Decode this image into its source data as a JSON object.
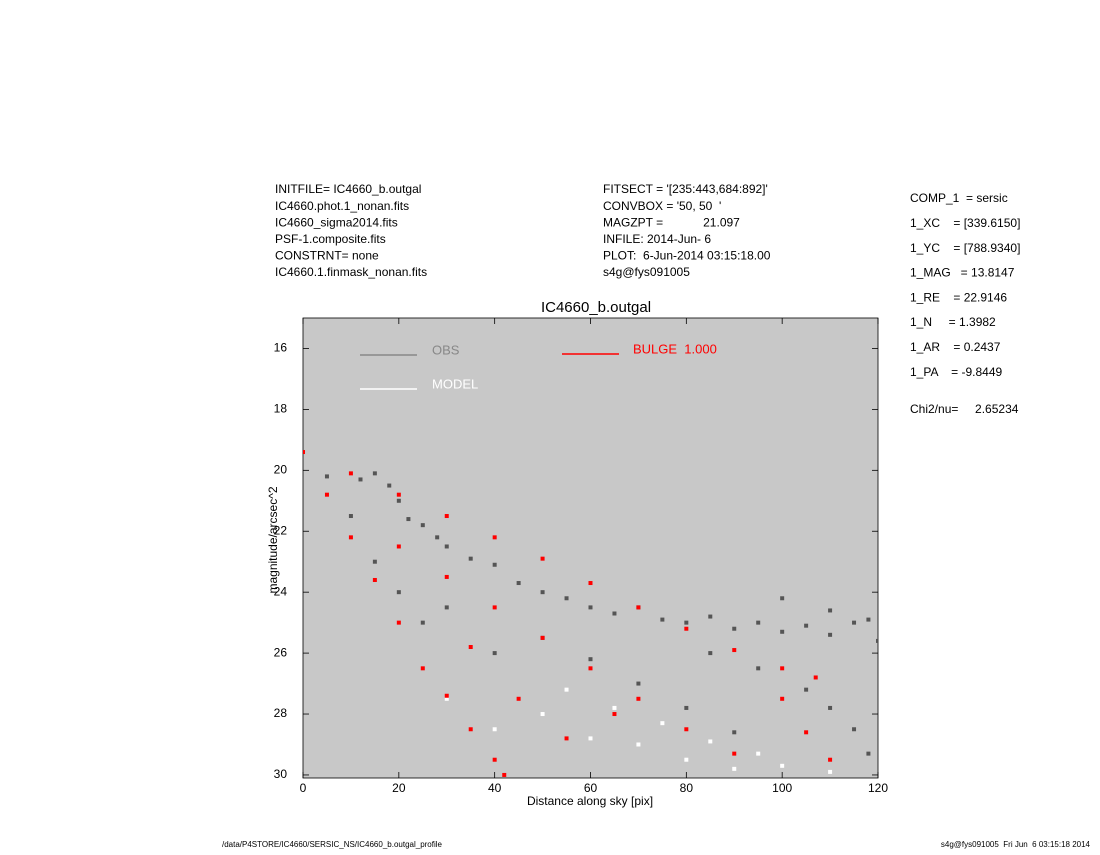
{
  "chart_data": {
    "type": "scatter",
    "title": "IC4660_b.outgal",
    "x_label": "Distance along sky [pix]",
    "y_label": "magnitude/arcsec^2",
    "xlim": [
      0,
      120
    ],
    "ylim": [
      15,
      30.1
    ],
    "y_inverted": true,
    "xticks": [
      0,
      20,
      40,
      60,
      80,
      100,
      120
    ],
    "yticks": [
      16,
      18,
      20,
      22,
      24,
      26,
      28,
      30
    ],
    "plot_background": "#c8c8c8",
    "header_left": [
      "INITFILE= IC4660_b.outgal",
      "IC4660.phot.1_nonan.fits",
      "IC4660_sigma2014.fits",
      "PSF-1.composite.fits",
      "CONSTRNT= none",
      "IC4660.1.finmask_nonan.fits"
    ],
    "header_center": [
      "FITSECT = '[235:443,684:892]'",
      "CONVBOX = '50, 50  '",
      "MAGZPT =            21.097",
      "INFILE: 2014-Jun- 6",
      "PLOT:  6-Jun-2014 03:15:18.00",
      "s4g@fys091005"
    ],
    "parameters": [
      "COMP_1  = sersic",
      "1_XC    = [339.6150]",
      "1_YC    = [788.9340]",
      "1_MAG   = 13.8147",
      "1_RE    = 22.9146",
      "1_N     = 1.3982",
      "1_AR    = 0.2437",
      "1_PA    = -9.8449"
    ],
    "fit_statistic": "Chi2/nu=     2.65234",
    "footer_left": "/data/P4STORE/IC4660/SERSIC_NS/IC4660_b.outgal_profile",
    "footer_right": "s4g@fys091005  Fri Jun  6 03:15:18 2014",
    "series": [
      {
        "name": "OBS",
        "color": "#555555",
        "legend_color": "#888888",
        "x": [
          5,
          10,
          12,
          15,
          18,
          20,
          22,
          25,
          28,
          30,
          35,
          40,
          45,
          50,
          55,
          60,
          65,
          70,
          75,
          80,
          85,
          90,
          95,
          100,
          105,
          110,
          115,
          120,
          85,
          95,
          105,
          110,
          115,
          118,
          30,
          40,
          50,
          60,
          70,
          80,
          90,
          25,
          20,
          15,
          100,
          110,
          118
        ],
        "values": [
          20.2,
          21.5,
          20.3,
          20.1,
          20.5,
          21.0,
          21.6,
          21.8,
          22.2,
          22.5,
          22.9,
          23.1,
          23.7,
          24.0,
          24.2,
          24.5,
          24.7,
          24.5,
          24.9,
          25.0,
          24.8,
          25.2,
          25.0,
          25.3,
          25.1,
          25.4,
          25.0,
          25.6,
          26.0,
          26.5,
          27.2,
          27.8,
          28.5,
          29.3,
          24.5,
          26.0,
          25.5,
          26.2,
          27.0,
          27.8,
          28.6,
          25.0,
          24.0,
          23.0,
          24.2,
          24.6,
          24.9
        ]
      },
      {
        "name": "MODEL",
        "color": "#ffffff",
        "legend_color": "#ffffff",
        "x": [
          30,
          40,
          50,
          60,
          70,
          80,
          90,
          100,
          110,
          55,
          65,
          75,
          85,
          95
        ],
        "values": [
          27.5,
          28.5,
          28.0,
          28.8,
          29.0,
          29.5,
          29.8,
          29.7,
          29.9,
          27.2,
          27.8,
          28.3,
          28.9,
          29.3
        ]
      },
      {
        "name": "BULGE  1.000",
        "color": "#ff0000",
        "legend_color": "#ff0000",
        "x": [
          0,
          10,
          20,
          30,
          40,
          50,
          60,
          70,
          80,
          90,
          100,
          107,
          5,
          10,
          15,
          20,
          25,
          30,
          35,
          40,
          42,
          20,
          30,
          40,
          50,
          60,
          70,
          80,
          90,
          105,
          110,
          45,
          35,
          55,
          100,
          65
        ],
        "values": [
          19.4,
          20.1,
          20.8,
          21.5,
          22.2,
          22.9,
          23.7,
          24.5,
          25.2,
          25.9,
          26.5,
          26.8,
          20.8,
          22.2,
          23.6,
          25.0,
          26.5,
          27.4,
          28.5,
          29.5,
          30.0,
          22.5,
          23.5,
          24.5,
          25.5,
          26.5,
          27.5,
          28.5,
          29.3,
          28.6,
          29.5,
          27.5,
          25.8,
          28.8,
          27.5,
          28.0
        ]
      }
    ]
  }
}
